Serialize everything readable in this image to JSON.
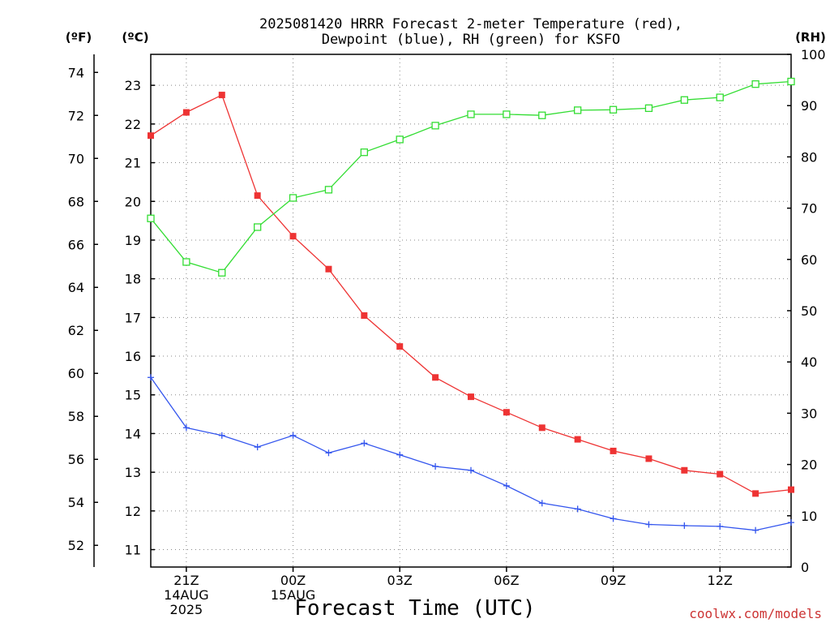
{
  "title_line1": "2025081420 HRRR Forecast 2-meter Temperature (red),",
  "title_line2": "Dewpoint (blue), RH (green) for KSFO",
  "units": {
    "fahrenheit": "(ºF)",
    "celsius": "(ºC)",
    "rh": "(RH)"
  },
  "xlabel": "Forecast Time (UTC)",
  "credit": "coolwx.com/models",
  "colors": {
    "temperature": "#ee3333",
    "dewpoint": "#3355ee",
    "rh": "#33dd33",
    "grid": "#888888"
  },
  "chart_data": {
    "type": "line",
    "x": [
      "20Z",
      "21Z",
      "22Z",
      "23Z",
      "00Z",
      "01Z",
      "02Z",
      "03Z",
      "04Z",
      "05Z",
      "06Z",
      "07Z",
      "08Z",
      "09Z",
      "10Z",
      "11Z",
      "12Z",
      "13Z",
      "14Z"
    ],
    "x_tick_labels": [
      {
        "x": "21Z",
        "lines": [
          "21Z",
          "14AUG",
          "2025"
        ]
      },
      {
        "x": "00Z",
        "lines": [
          "00Z",
          "15AUG"
        ]
      },
      {
        "x": "03Z",
        "lines": [
          "03Z"
        ]
      },
      {
        "x": "06Z",
        "lines": [
          "06Z"
        ]
      },
      {
        "x": "09Z",
        "lines": [
          "09Z"
        ]
      },
      {
        "x": "12Z",
        "lines": [
          "12Z"
        ]
      }
    ],
    "y_celsius_ticks": [
      11,
      12,
      13,
      14,
      15,
      16,
      17,
      18,
      19,
      20,
      21,
      22,
      23
    ],
    "y_fahrenheit_ticks": [
      52,
      54,
      56,
      58,
      60,
      62,
      64,
      66,
      68,
      70,
      72,
      74
    ],
    "y_rh_ticks": [
      0,
      10,
      20,
      30,
      40,
      50,
      60,
      70,
      80,
      90,
      100
    ],
    "ylim_celsius": [
      10.55,
      23.8
    ],
    "ylim_rh": [
      0,
      100
    ],
    "grid": true,
    "series": [
      {
        "name": "Temperature",
        "key": "temperature",
        "marker": "filled-square",
        "values": [
          21.7,
          22.3,
          22.75,
          20.15,
          19.1,
          18.25,
          17.05,
          16.25,
          15.45,
          14.95,
          14.55,
          14.15,
          13.85,
          13.55,
          13.35,
          13.05,
          12.95,
          12.45,
          12.55
        ]
      },
      {
        "name": "Dewpoint",
        "key": "dewpoint",
        "marker": "plus",
        "values": [
          15.45,
          14.15,
          13.95,
          13.65,
          13.95,
          13.5,
          13.75,
          13.45,
          13.15,
          13.05,
          12.65,
          12.2,
          12.05,
          11.8,
          11.65,
          11.62,
          11.6,
          11.5,
          11.7
        ]
      },
      {
        "name": "RH",
        "key": "rh",
        "marker": "open-square",
        "values": [
          68,
          59.5,
          57.4,
          66.3,
          72,
          73.6,
          80.9,
          83.4,
          86.1,
          88.3,
          88.3,
          88.1,
          89.1,
          89.2,
          89.5,
          91.1,
          91.6,
          94.2,
          94.7
        ]
      }
    ]
  }
}
